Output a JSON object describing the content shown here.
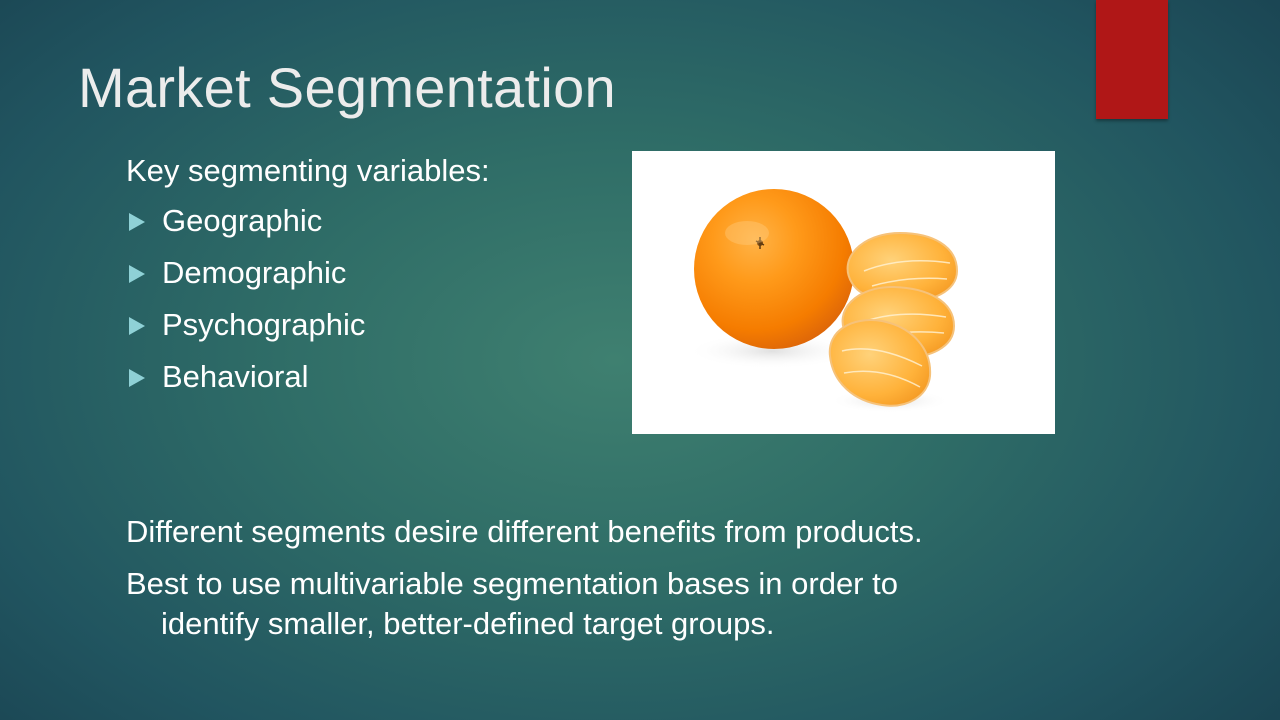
{
  "slide": {
    "title": "Market Segmentation",
    "intro": "Key segmenting variables:",
    "bullets": [
      "Geographic",
      "Demographic",
      "Psychographic",
      "Behavioral"
    ],
    "paragraphs": {
      "p1": "Different segments desire different benefits from products.",
      "p2_line1": "Best to use multivariable segmentation bases in order to",
      "p2_line2": "identify smaller, better-defined target groups."
    },
    "image": {
      "icon": "orange-and-segments-photo"
    },
    "colors": {
      "accent_bar": "#b01717",
      "bullet_arrow": "#8fd1d6",
      "title_text": "#ececec",
      "body_text": "#ffffff"
    }
  }
}
